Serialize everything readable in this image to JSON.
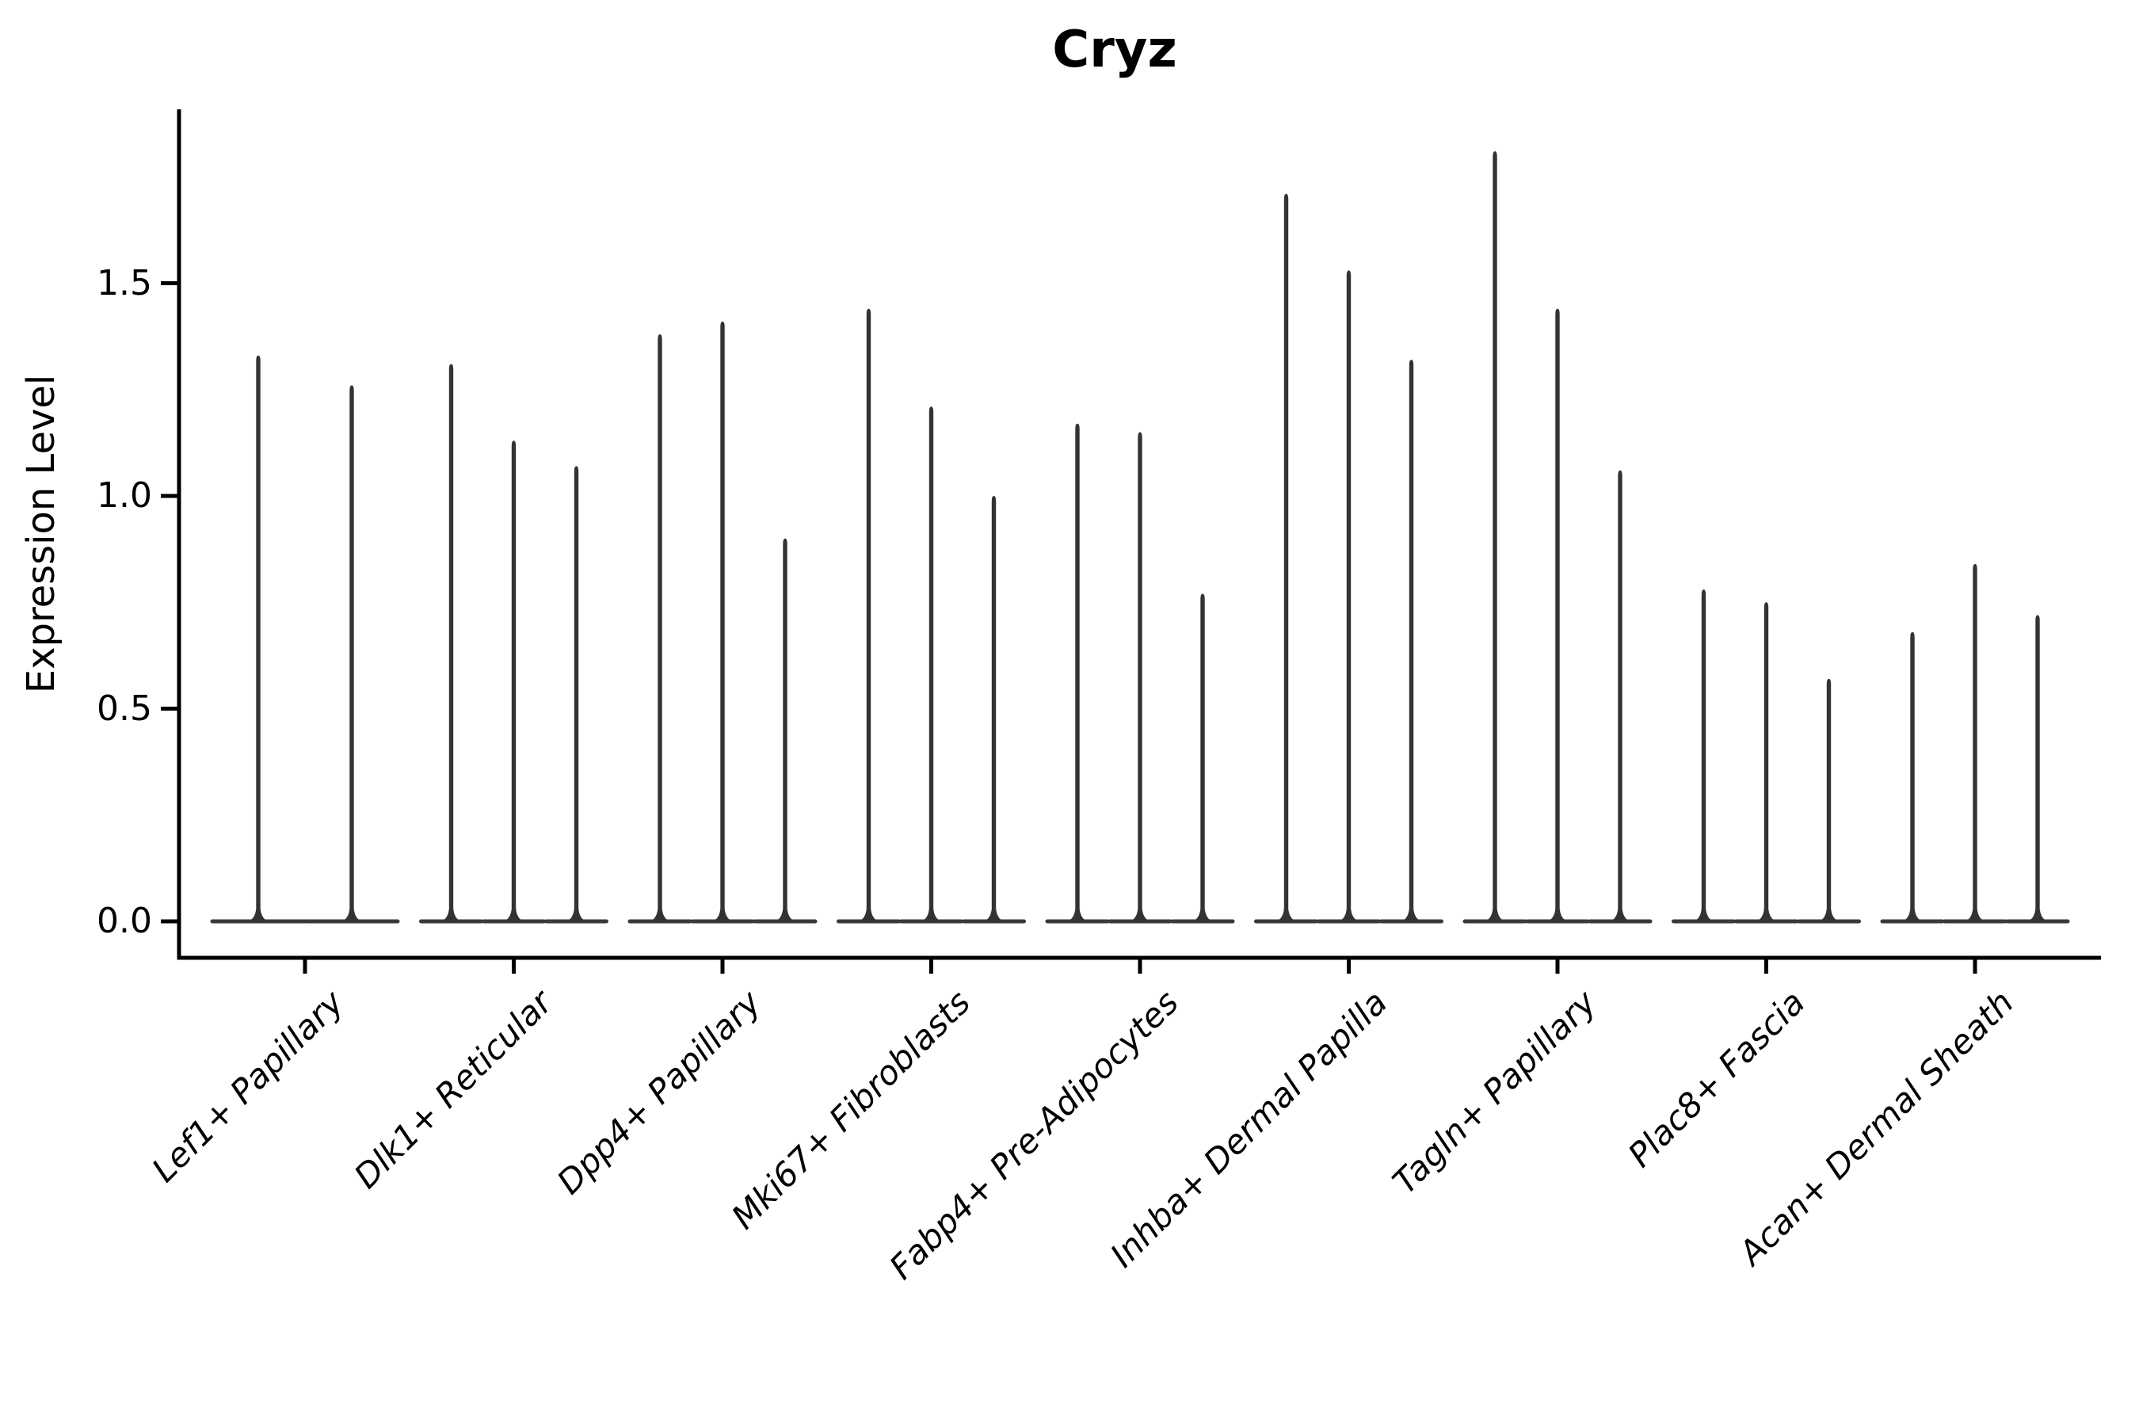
{
  "chart_data": {
    "type": "violin",
    "title": "Cryz",
    "ylabel": "Expression Level",
    "xlabel": "",
    "ylim": [
      0,
      1.9
    ],
    "yticks": [
      0,
      0.5,
      1.0,
      1.5
    ],
    "ytick_labels": [
      "0.0",
      "0.5",
      "1.0",
      "1.5"
    ],
    "grid": false,
    "legend": "none",
    "violin_color": "#333333",
    "violin_base_color": "#3a3a3a",
    "axis_color": "#000000",
    "categories": [
      "Lef1+ Papillary",
      "Dlk1+ Reticular",
      "Dpp4+ Papillary",
      "Mki67+ Fibroblasts",
      "Fabp4+ Pre-Adipocytes",
      "Inhba+ Dermal Papilla",
      "Tagln+ Papillary",
      "Plac8+ Fascia",
      "Acan+ Dermal Sheath"
    ],
    "groups": [
      {
        "category": "Lef1+ Papillary",
        "violin_peaks": [
          1.33,
          1.26
        ]
      },
      {
        "category": "Dlk1+ Reticular",
        "violin_peaks": [
          1.31,
          1.13,
          1.07
        ]
      },
      {
        "category": "Dpp4+ Papillary",
        "violin_peaks": [
          1.38,
          1.41,
          0.9
        ]
      },
      {
        "category": "Mki67+ Fibroblasts",
        "violin_peaks": [
          1.44,
          1.21,
          1.0
        ]
      },
      {
        "category": "Fabp4+ Pre-Adipocytes",
        "violin_peaks": [
          1.17,
          1.15,
          0.77
        ]
      },
      {
        "category": "Inhba+ Dermal Papilla",
        "violin_peaks": [
          1.71,
          1.53,
          1.32
        ]
      },
      {
        "category": "Tagln+ Papillary",
        "violin_peaks": [
          1.81,
          1.44,
          1.06
        ]
      },
      {
        "category": "Plac8+ Fascia",
        "violin_peaks": [
          0.78,
          0.75,
          0.57
        ]
      },
      {
        "category": "Acan+ Dermal Sheath",
        "violin_peaks": [
          0.68,
          0.84,
          0.72
        ]
      }
    ]
  }
}
